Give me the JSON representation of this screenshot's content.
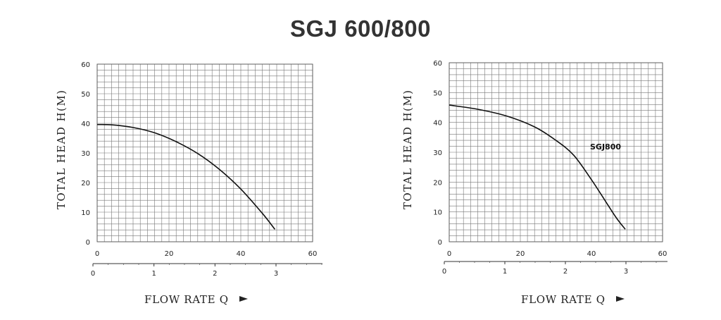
{
  "title": "SGJ 600/800",
  "chart_data": [
    {
      "type": "line",
      "ylabel": "TOTAL HEAD H(M)",
      "xlabel": "FLOW RATE Q",
      "ylim": [
        0,
        60
      ],
      "xlim": [
        0,
        60
      ],
      "y_ticks": [
        "0",
        "10",
        "20",
        "30",
        "40",
        "50",
        "60"
      ],
      "x_ticks": [
        "0",
        "20",
        "40",
        "60"
      ],
      "x2_ticks": [
        "0",
        "1",
        "2",
        "3"
      ],
      "grid": true,
      "series": [
        {
          "name": "",
          "x": [
            0,
            4,
            10,
            16,
            22,
            28,
            34,
            40,
            46,
            49.5
          ],
          "y": [
            39.6,
            39.5,
            38.6,
            36.8,
            33.8,
            29.8,
            24.5,
            17.8,
            9.6,
            4.2
          ]
        }
      ]
    },
    {
      "type": "line",
      "ylabel": "TOTAL HEAD H(M)",
      "xlabel": "FLOW RATE Q",
      "ylim": [
        0,
        60
      ],
      "xlim": [
        0,
        60
      ],
      "y_ticks": [
        "0",
        "10",
        "20",
        "30",
        "40",
        "50",
        "60"
      ],
      "x_ticks": [
        "0",
        "20",
        "40",
        "60"
      ],
      "x2_ticks": [
        "0",
        "1",
        "2",
        "3"
      ],
      "grid": true,
      "series": [
        {
          "name": "SGJ800",
          "x": [
            0,
            8,
            16,
            24,
            30,
            35,
            40,
            44,
            47,
            49.5
          ],
          "y": [
            45.8,
            44.4,
            42.2,
            38.5,
            34.0,
            29.0,
            20.8,
            13.5,
            8.0,
            4.2
          ]
        }
      ]
    }
  ]
}
